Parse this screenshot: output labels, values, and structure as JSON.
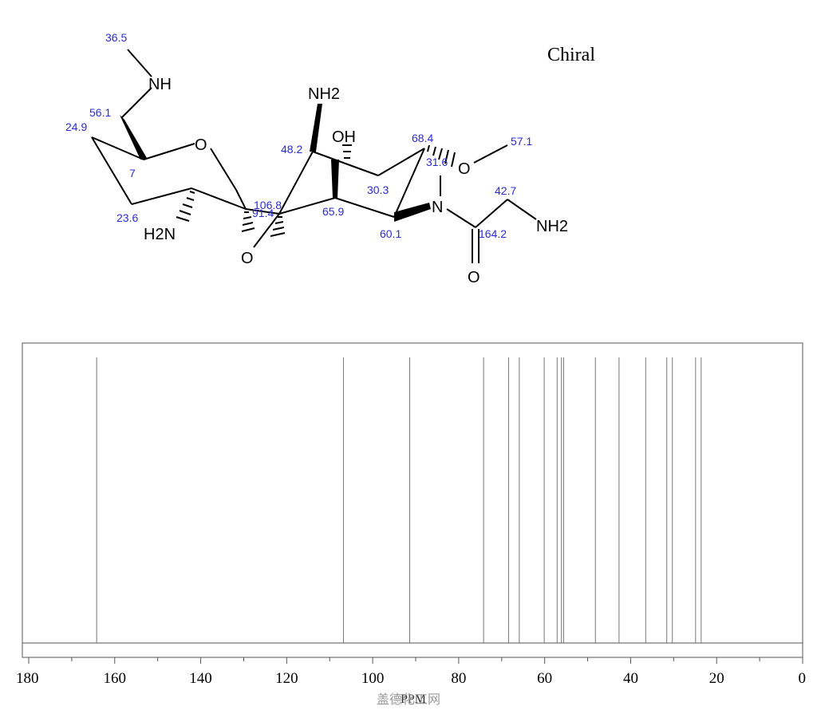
{
  "molecule": {
    "chiral_label": "Chiral",
    "atoms": {
      "nh_top": "NH",
      "o_ring": "O",
      "nh2_left": "H2N",
      "o_bridge": "O",
      "nh2_mid": "NH2",
      "oh": "OH",
      "o_methoxy": "O",
      "n_amide": "N",
      "nh2_right": "NH2",
      "o_carbonyl": "O"
    },
    "shift_labels": {
      "l_36_5": "36.5",
      "l_56_1": "56.1",
      "l_24_9": "24.9",
      "l_7": "7",
      "l_23_6": "23.6",
      "l_106_8": "106.8",
      "l_91_4": "91.4",
      "l_48_2": "48.2",
      "l_65_9": "65.9",
      "l_30_3": "30.3",
      "l_68_4": "68.4",
      "l_31_6": "31.6",
      "l_57_1": "57.1",
      "l_60_1": "60.1",
      "l_42_7": "42.7",
      "l_164_2": "164.2"
    }
  },
  "chart_data": {
    "type": "bar",
    "xlabel": "PPM",
    "xlim": [
      180,
      0
    ],
    "x_reversed": true,
    "x_ticks": [
      180,
      160,
      140,
      120,
      100,
      80,
      60,
      40,
      20,
      0
    ],
    "peaks": [
      164.2,
      106.8,
      91.4,
      74.2,
      68.4,
      65.9,
      60.1,
      57.1,
      56.1,
      55.6,
      48.2,
      42.7,
      36.5,
      31.6,
      30.3,
      24.9,
      23.6
    ],
    "grid": false
  },
  "watermark": "盖德化工网"
}
